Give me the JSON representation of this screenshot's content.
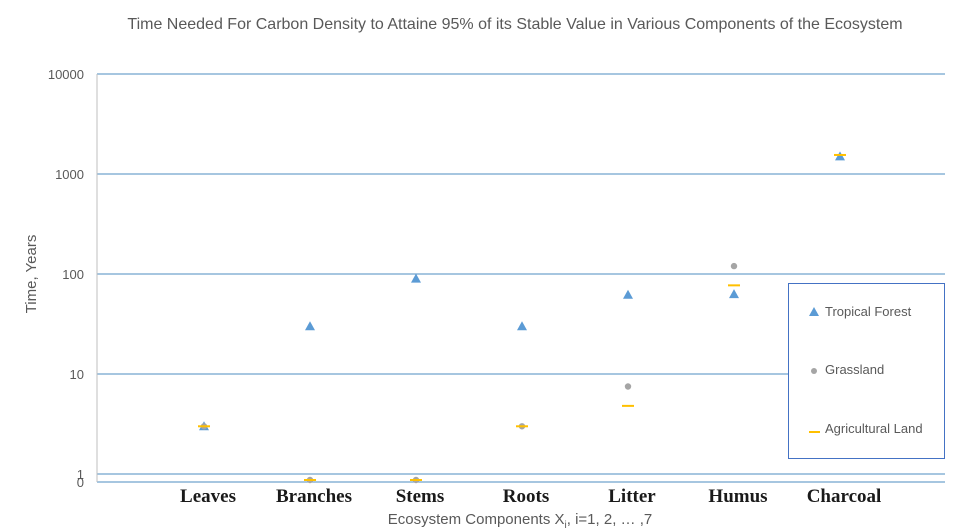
{
  "chart_data": {
    "type": "scatter",
    "title": "Time Needed For Carbon Density to Attaine 95% of its Stable Value in Various Components of the Ecosystem",
    "xlabel_main": "Ecosystem Components X",
    "xlabel_sub": "i",
    "xlabel_tail": ", i=1, 2, … ,7",
    "ylabel": "Time, Years",
    "y_scale": "log",
    "ylim": [
      0,
      10000
    ],
    "y_ticks": [
      "10000",
      "1000",
      "100",
      "10",
      "1",
      "0"
    ],
    "categories": [
      "Leaves",
      "Branches",
      "Stems",
      "Roots",
      "Litter",
      "Humus",
      "Charcoal"
    ],
    "series": [
      {
        "name": "Tropical Forest",
        "marker": "triangle",
        "color": "#5b9bd5",
        "values": [
          3,
          30,
          90,
          30,
          62,
          63,
          1500
        ]
      },
      {
        "name": "Grassland",
        "marker": "circle",
        "color": "#a5a5a5",
        "values": [
          3,
          0,
          0,
          3,
          7.5,
          120,
          null
        ]
      },
      {
        "name": "Agricultural Land",
        "marker": "dash",
        "color": "#ffc000",
        "values": [
          3,
          0,
          0,
          3,
          4.8,
          77,
          1550
        ]
      }
    ],
    "grid": true,
    "legend_position": "right"
  }
}
